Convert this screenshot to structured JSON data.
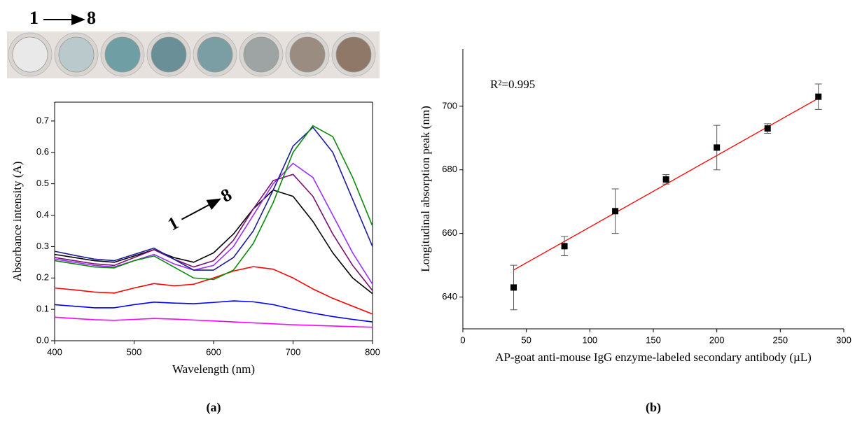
{
  "chart_data": [
    {
      "type": "line",
      "photo_labels": {
        "start": "1",
        "end": "8"
      },
      "annotation": {
        "start": "1",
        "end": "8"
      },
      "x_label": "Wavelength (nm)",
      "y_label": "Absorbance intensity (A)",
      "x": [
        400,
        425,
        450,
        475,
        500,
        525,
        550,
        575,
        600,
        625,
        650,
        675,
        700,
        725,
        750,
        775,
        800
      ],
      "series": [
        {
          "color": "#ff00ff",
          "values": [
            0.075,
            0.071,
            0.067,
            0.065,
            0.068,
            0.071,
            0.069,
            0.066,
            0.063,
            0.06,
            0.057,
            0.054,
            0.051,
            0.049,
            0.047,
            0.045,
            0.043
          ]
        },
        {
          "color": "#0000ff",
          "values": [
            0.115,
            0.11,
            0.105,
            0.105,
            0.115,
            0.123,
            0.12,
            0.118,
            0.122,
            0.127,
            0.124,
            0.115,
            0.1,
            0.088,
            0.077,
            0.068,
            0.06
          ]
        },
        {
          "color": "#ff0000",
          "values": [
            0.168,
            0.162,
            0.155,
            0.152,
            0.168,
            0.182,
            0.175,
            0.18,
            0.2,
            0.222,
            0.236,
            0.228,
            0.2,
            0.165,
            0.135,
            0.11,
            0.085
          ]
        },
        {
          "color": "#000000",
          "values": [
            0.275,
            0.265,
            0.255,
            0.25,
            0.27,
            0.29,
            0.265,
            0.25,
            0.28,
            0.34,
            0.42,
            0.48,
            0.46,
            0.38,
            0.28,
            0.2,
            0.15
          ]
        },
        {
          "color": "#7a1070",
          "values": [
            0.265,
            0.255,
            0.245,
            0.24,
            0.265,
            0.29,
            0.26,
            0.235,
            0.255,
            0.32,
            0.42,
            0.51,
            0.53,
            0.46,
            0.34,
            0.24,
            0.16
          ]
        },
        {
          "color": "#9a30ff",
          "values": [
            0.26,
            0.25,
            0.24,
            0.235,
            0.255,
            0.275,
            0.245,
            0.225,
            0.24,
            0.3,
            0.4,
            0.5,
            0.565,
            0.52,
            0.4,
            0.28,
            0.18
          ]
        },
        {
          "color": "#1c1c9c",
          "values": [
            0.285,
            0.272,
            0.26,
            0.255,
            0.275,
            0.295,
            0.26,
            0.225,
            0.225,
            0.265,
            0.35,
            0.48,
            0.62,
            0.68,
            0.6,
            0.45,
            0.3
          ]
        },
        {
          "color": "#0a8a0a",
          "values": [
            0.255,
            0.245,
            0.235,
            0.232,
            0.255,
            0.27,
            0.235,
            0.2,
            0.195,
            0.225,
            0.31,
            0.44,
            0.6,
            0.685,
            0.65,
            0.52,
            0.365
          ]
        }
      ],
      "xlim": [
        400,
        800
      ],
      "xticks": [
        400,
        500,
        600,
        700,
        800
      ],
      "ylim": [
        0,
        0.76
      ],
      "yticks": [
        {
          "value": 0,
          "label": "0.0"
        },
        0.1,
        0.2,
        0.3,
        0.4,
        0.5,
        0.6,
        0.7
      ],
      "panel_label": "(a)"
    },
    {
      "type": "scatter",
      "annotation": "R²=0.995",
      "x_label": "AP-goat anti-mouse IgG enzyme-labeled secondary antibody (µL)",
      "y_label": "Longitudinal absorption peak (nm)",
      "x": [
        40,
        80,
        120,
        160,
        200,
        240,
        280
      ],
      "values": [
        643,
        656,
        667,
        677,
        687,
        693,
        703
      ],
      "errors": [
        7,
        3,
        7,
        1.5,
        7,
        1.5,
        4
      ],
      "color": "#000000",
      "fit": {
        "color": "#ff0000",
        "x": [
          40,
          280
        ],
        "y": [
          648.5,
          702.5
        ]
      },
      "xlim": [
        0,
        300
      ],
      "xticks": [
        0,
        50,
        100,
        150,
        200,
        250,
        300
      ],
      "ylim": [
        630,
        718
      ],
      "yticks": [
        640,
        660,
        680,
        700
      ],
      "panel_label": "(b)"
    }
  ]
}
